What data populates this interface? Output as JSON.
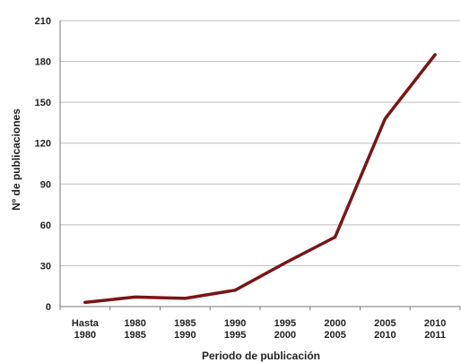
{
  "chart_data": {
    "type": "line",
    "xlabel": "Periodo de publicación",
    "ylabel": "Nº de publicaciones",
    "ylim": [
      0,
      210
    ],
    "yticks": [
      0,
      30,
      60,
      90,
      120,
      150,
      180,
      210
    ],
    "grid": "horizontal",
    "line_color": "#7a1515",
    "categories": [
      [
        "Hasta",
        "1980"
      ],
      [
        "1980",
        "1985"
      ],
      [
        "1985",
        "1990"
      ],
      [
        "1990",
        "1995"
      ],
      [
        "1995",
        "2000"
      ],
      [
        "2000",
        "2005"
      ],
      [
        "2005",
        "2010"
      ],
      [
        "2010",
        "2011"
      ]
    ],
    "series": [
      {
        "values": [
          3,
          7,
          6,
          12,
          32,
          51,
          138,
          185
        ]
      }
    ]
  }
}
